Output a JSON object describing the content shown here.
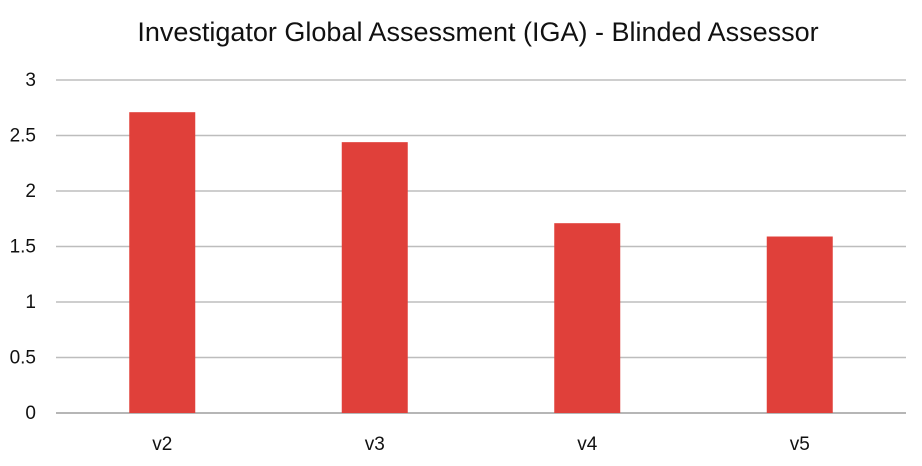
{
  "chart_data": {
    "type": "bar",
    "title": "Investigator Global Assessment (IGA) - Blinded Assessor",
    "xlabel": "",
    "ylabel": "",
    "categories": [
      "v2",
      "v3",
      "v4",
      "v5"
    ],
    "values": [
      2.71,
      2.44,
      1.71,
      1.59
    ],
    "ylim": [
      0,
      3
    ],
    "yticks": [
      "0",
      "0.5",
      "1",
      "1.5",
      "2",
      "2.5",
      "3"
    ],
    "grid": true,
    "legend": "none",
    "bar_color": "#e0403a"
  }
}
